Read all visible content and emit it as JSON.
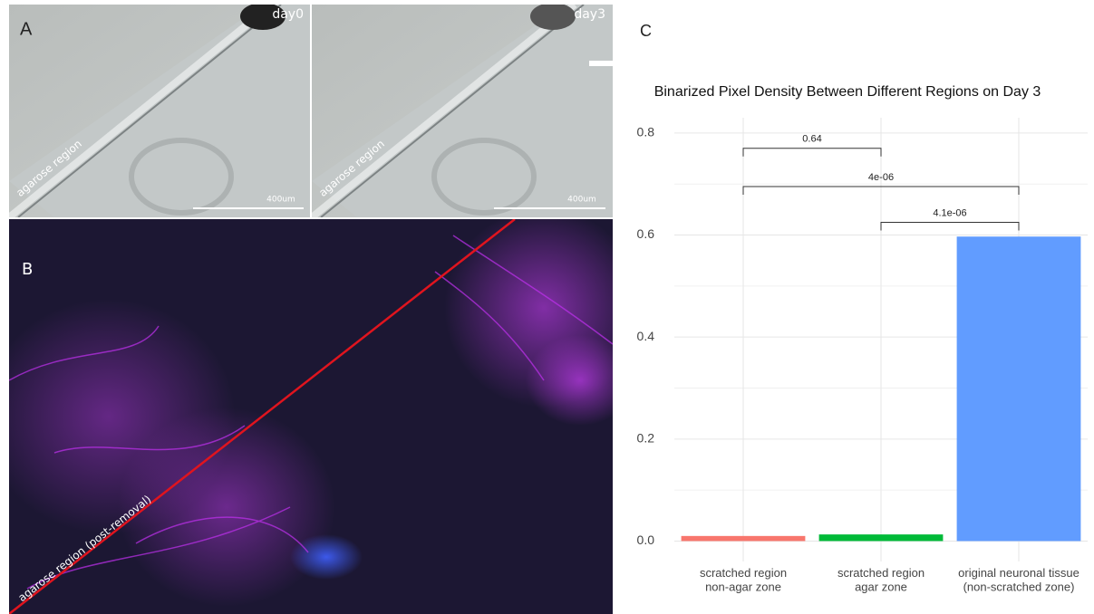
{
  "panels": {
    "a": {
      "label": "A",
      "left_caption": "day0",
      "right_caption": "day3",
      "region_label": "agarose region",
      "scale_label": "400um"
    },
    "b": {
      "label": "B",
      "region_label": "agarose region (post-removal)"
    },
    "c": {
      "label": "C"
    }
  },
  "chart_data": {
    "type": "bar",
    "title": "Binarized Pixel Density Between Different Regions on Day 3",
    "categories": [
      "scratched region\nnon-agar zone",
      "scratched region\nagar zone",
      "original neuronal tissue\n(non-scratched zone)"
    ],
    "values": [
      0.01,
      0.013,
      0.597
    ],
    "colors": [
      "#f8766d",
      "#00ba38",
      "#619cff"
    ],
    "ylim": [
      -0.04,
      0.83
    ],
    "yticks": [
      {
        "value": 0,
        "label": "0.0"
      },
      0.2,
      0.4,
      0.6,
      0.8
    ],
    "grid": true,
    "minor_grid": true,
    "comparisons": [
      {
        "from": 0,
        "to": 1,
        "label": "0.64",
        "y": 0.77
      },
      {
        "from": 0,
        "to": 2,
        "label": "4e-06",
        "y": 0.695
      },
      {
        "from": 1,
        "to": 2,
        "label": "4.1e-06",
        "y": 0.625
      }
    ]
  }
}
